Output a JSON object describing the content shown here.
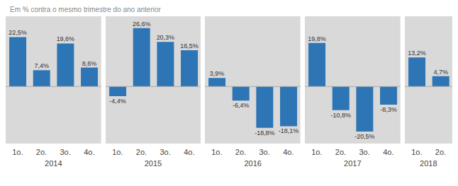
{
  "chart_data": {
    "type": "bar",
    "subtitle": "Em % contra o mesmo trimestre do ano anterior",
    "color": "#2e75b6",
    "ylim": [
      -26,
      32
    ],
    "tick_labels": "x",
    "data_labels": true,
    "grid": false,
    "groups": [
      {
        "name": "2014",
        "categories": [
          "1o.",
          "2o.",
          "3o.",
          "4o."
        ],
        "values": [
          22.5,
          7.4,
          19.6,
          8.6
        ],
        "value_labels": [
          "22,5%",
          "7,4%",
          "19,6%",
          "8,6%"
        ]
      },
      {
        "name": "2015",
        "categories": [
          "1o.",
          "2o.",
          "3o.",
          "4o."
        ],
        "values": [
          -4.4,
          26.6,
          20.3,
          16.5
        ],
        "value_labels": [
          "-4,4%",
          "26,6%",
          "20,3%",
          "16,5%"
        ]
      },
      {
        "name": "2016",
        "categories": [
          "1o.",
          "2o.",
          "3o.",
          "4o."
        ],
        "values": [
          3.9,
          -6.4,
          -18.8,
          -18.1
        ],
        "value_labels": [
          "3,9%",
          "-6,4%",
          "-18,8%",
          "-18,1%"
        ]
      },
      {
        "name": "2017",
        "categories": [
          "1o.",
          "2o.",
          "3o.",
          "4o."
        ],
        "values": [
          19.8,
          -10.8,
          -20.5,
          -8.3
        ],
        "value_labels": [
          "19,8%",
          "-10,8%",
          "-20,5%",
          "-8,3%"
        ]
      },
      {
        "name": "2018",
        "categories": [
          "1o.",
          "2o."
        ],
        "values": [
          13.2,
          4.7
        ],
        "value_labels": [
          "13,2%",
          "4,7%"
        ]
      }
    ]
  }
}
